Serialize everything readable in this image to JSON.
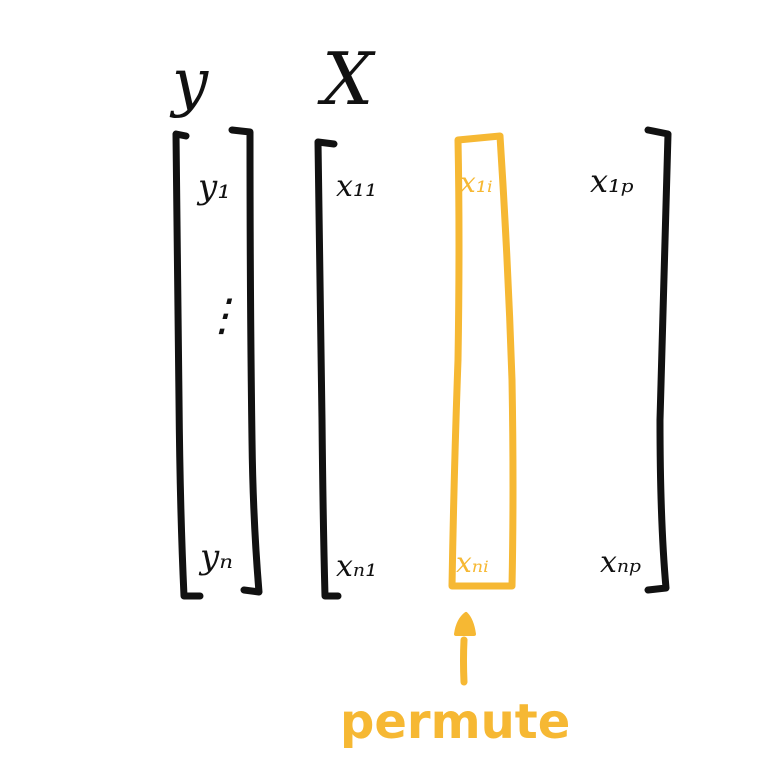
{
  "colors": {
    "ink": "#111111",
    "accent": "#F6B833"
  },
  "y_vector": {
    "title": "y",
    "top_entry": "y₁",
    "ellipsis": "⋮",
    "bottom_entry": "yₙ"
  },
  "x_matrix": {
    "title": "X",
    "col1_top": "x₁₁",
    "col1_bottom": "xₙ₁",
    "colp_top": "x₁ₚ",
    "colp_bottom": "xₙₚ"
  },
  "highlighted_column": {
    "top_entry": "x₁ᵢ",
    "bottom_entry": "xₙᵢ"
  },
  "caption": "permute"
}
